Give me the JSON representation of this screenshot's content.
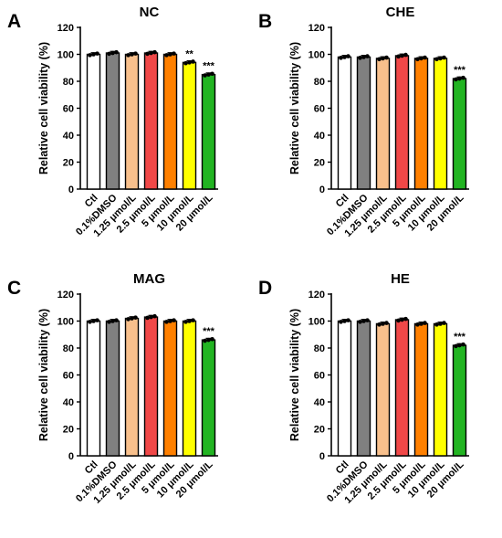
{
  "chart_data": [
    {
      "type": "bar",
      "panel": "A",
      "title": "NC",
      "ylabel": "Relative cell viability (%)",
      "ylim": [
        0,
        120
      ],
      "yticks": [
        0,
        20,
        40,
        60,
        80,
        100,
        120
      ],
      "categories": [
        "Ctl",
        "0.1%DMSO",
        "1.25 μmol/L",
        "2.5 μmol/L",
        "5 μmol/L",
        "10 μmol/L",
        "20 μmol/L"
      ],
      "values": [
        100,
        101,
        100,
        101,
        100,
        94,
        85
      ],
      "significance": [
        "",
        "",
        "",
        "",
        "",
        "**",
        "***"
      ],
      "colors": [
        "#ffffff",
        "#808080",
        "#f8c08c",
        "#f04848",
        "#ff8000",
        "#ffff00",
        "#22b422"
      ]
    },
    {
      "type": "bar",
      "panel": "B",
      "title": "CHE",
      "ylabel": "Relative cell viability (%)",
      "ylim": [
        0,
        120
      ],
      "yticks": [
        0,
        20,
        40,
        60,
        80,
        100,
        120
      ],
      "categories": [
        "Ctl",
        "0.1%DMSO",
        "1.25 μmol/L",
        "2.5 μmol/L",
        "5 μmol/L",
        "10 μmol/L",
        "20 μmol/L"
      ],
      "values": [
        98,
        98,
        97,
        99,
        97,
        97,
        82
      ],
      "significance": [
        "",
        "",
        "",
        "",
        "",
        "",
        "***"
      ],
      "colors": [
        "#ffffff",
        "#808080",
        "#f8c08c",
        "#f04848",
        "#ff8000",
        "#ffff00",
        "#22b422"
      ]
    },
    {
      "type": "bar",
      "panel": "C",
      "title": "MAG",
      "ylabel": "Relative cell viability (%)",
      "ylim": [
        0,
        120
      ],
      "yticks": [
        0,
        20,
        40,
        60,
        80,
        100,
        120
      ],
      "categories": [
        "Ctl",
        "0.1%DMSO",
        "1.25 μmol/L",
        "2.5 μmol/L",
        "5 μmol/L",
        "10 μmol/L",
        "20 μmol/L"
      ],
      "values": [
        100,
        100,
        102,
        103,
        100,
        100,
        86
      ],
      "significance": [
        "",
        "",
        "",
        "",
        "",
        "",
        "***"
      ],
      "colors": [
        "#ffffff",
        "#808080",
        "#f8c08c",
        "#f04848",
        "#ff8000",
        "#ffff00",
        "#22b422"
      ]
    },
    {
      "type": "bar",
      "panel": "D",
      "title": "HE",
      "ylabel": "Relative cell viability (%)",
      "ylim": [
        0,
        120
      ],
      "yticks": [
        0,
        20,
        40,
        60,
        80,
        100,
        120
      ],
      "categories": [
        "Ctl",
        "0.1%DMSO",
        "1.25 μmol/L",
        "2.5 μmol/L",
        "5 μmol/L",
        "10 μmol/L",
        "20 μmol/L"
      ],
      "values": [
        100,
        100,
        98,
        101,
        98,
        98,
        82
      ],
      "significance": [
        "",
        "",
        "",
        "",
        "",
        "",
        "***"
      ],
      "colors": [
        "#ffffff",
        "#808080",
        "#f8c08c",
        "#f04848",
        "#ff8000",
        "#ffff00",
        "#22b422"
      ]
    }
  ]
}
